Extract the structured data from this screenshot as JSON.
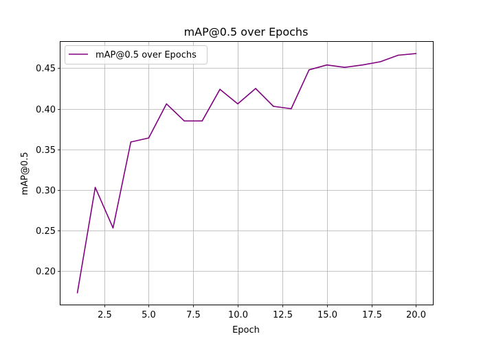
{
  "chart_data": {
    "type": "line",
    "title": "mAP@0.5 over Epochs",
    "xlabel": "Epoch",
    "ylabel": "mAP@0.5",
    "xlim": [
      0.05,
      20.95
    ],
    "ylim": [
      0.1585,
      0.4825
    ],
    "xticks": [
      2.5,
      5.0,
      7.5,
      10.0,
      12.5,
      15.0,
      17.5,
      20.0
    ],
    "xtick_labels": [
      "2.5",
      "5.0",
      "7.5",
      "10.0",
      "12.5",
      "15.0",
      "17.5",
      "20.0"
    ],
    "yticks": [
      0.2,
      0.25,
      0.3,
      0.35,
      0.4,
      0.45
    ],
    "ytick_labels": [
      "0.20",
      "0.25",
      "0.30",
      "0.35",
      "0.40",
      "0.45"
    ],
    "grid": true,
    "legend_position": "top-left",
    "series": [
      {
        "name": "mAP@0.5 over Epochs",
        "color": "#800080",
        "x": [
          1,
          2,
          3,
          4,
          5,
          6,
          7,
          8,
          9,
          10,
          11,
          12,
          13,
          14,
          15,
          16,
          17,
          18,
          19,
          20
        ],
        "y": [
          0.173,
          0.303,
          0.253,
          0.359,
          0.364,
          0.406,
          0.385,
          0.385,
          0.424,
          0.406,
          0.425,
          0.403,
          0.4,
          0.448,
          0.454,
          0.451,
          0.454,
          0.458,
          0.466,
          0.468
        ]
      }
    ]
  }
}
